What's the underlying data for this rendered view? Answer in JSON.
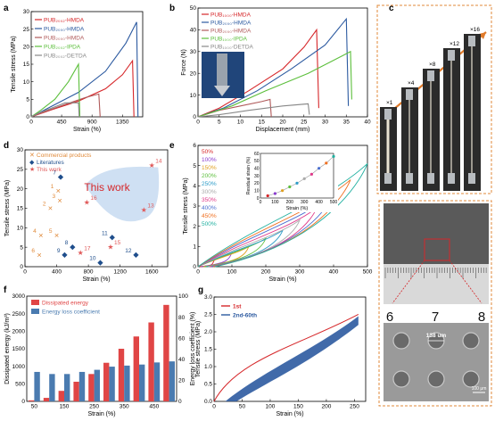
{
  "panels": {
    "a": {
      "label": "a",
      "chart_data": {
        "type": "line",
        "xlabel": "Strain (%)",
        "ylabel": "Tensile stress (MPa)",
        "xlim": [
          0,
          1650
        ],
        "ylim": [
          0,
          30
        ],
        "xticks": [
          "0",
          "450",
          "900",
          "1350"
        ],
        "yticks": [
          "0",
          "5",
          "10",
          "15",
          "20",
          "25",
          "30"
        ],
        "series": [
          {
            "name": "PUB₂₀₀₂-HMDA",
            "color": "#d6272a",
            "points": [
              [
                0,
                0
              ],
              [
                300,
                2
              ],
              [
                700,
                4.5
              ],
              [
                1100,
                8
              ],
              [
                1350,
                12
              ],
              [
                1500,
                16
              ],
              [
                1520,
                0
              ]
            ]
          },
          {
            "name": "PUB₂₀₀₀-HMDA",
            "color": "#2c5aa0",
            "points": [
              [
                0,
                0
              ],
              [
                300,
                3
              ],
              [
                700,
                7
              ],
              [
                1100,
                13
              ],
              [
                1400,
                21
              ],
              [
                1560,
                27
              ],
              [
                1580,
                0
              ]
            ]
          },
          {
            "name": "PUB₂₀₀₀-HMDA",
            "color": "#b05a5a",
            "points": [
              [
                0,
                0
              ],
              [
                200,
                1.5
              ],
              [
                500,
                3.5
              ],
              [
                800,
                5.5
              ],
              [
                1000,
                6.5
              ],
              [
                1020,
                0
              ]
            ]
          },
          {
            "name": "PUB₂₀₀₂-IPDA",
            "color": "#5cbf3c",
            "points": [
              [
                0,
                0
              ],
              [
                150,
                2
              ],
              [
                350,
                5
              ],
              [
                550,
                10
              ],
              [
                700,
                15
              ],
              [
                720,
                0
              ]
            ]
          },
          {
            "name": "PUB₂₀₀₂-DETDA",
            "color": "#888888",
            "points": [
              [
                0,
                0
              ],
              [
                100,
                1
              ],
              [
                300,
                2.5
              ],
              [
                500,
                4
              ],
              [
                700,
                4
              ],
              [
                710,
                0
              ]
            ]
          }
        ]
      }
    },
    "b": {
      "label": "b",
      "chart_data": {
        "type": "line",
        "xlabel": "Displacement (mm)",
        "ylabel": "Force (N)",
        "xlim": [
          0,
          40
        ],
        "ylim": [
          0,
          50
        ],
        "xticks": [
          "0",
          "5",
          "10",
          "15",
          "20",
          "25",
          "30",
          "35",
          "40"
        ],
        "yticks": [
          "0",
          "10",
          "20",
          "30",
          "40",
          "50"
        ],
        "series": [
          {
            "name": "PUB₁₀₀₀-HMDA",
            "color": "#d6272a",
            "points": [
              [
                0,
                0
              ],
              [
                5,
                4
              ],
              [
                12,
                12
              ],
              [
                20,
                22
              ],
              [
                25,
                32
              ],
              [
                28,
                40
              ],
              [
                28.5,
                4
              ]
            ]
          },
          {
            "name": "PUB₂₀₀₀-HMDA",
            "color": "#2c5aa0",
            "points": [
              [
                0,
                0
              ],
              [
                6,
                4
              ],
              [
                14,
                12
              ],
              [
                22,
                22
              ],
              [
                30,
                33
              ],
              [
                35,
                45
              ],
              [
                35.5,
                5
              ]
            ]
          },
          {
            "name": "PUB₂₀₀₀-HMDA",
            "color": "#b05a5a",
            "points": [
              [
                0,
                0
              ],
              [
                5,
                3
              ],
              [
                10,
                5
              ],
              [
                15,
                7
              ],
              [
                17,
                8
              ],
              [
                17.3,
                0
              ]
            ]
          },
          {
            "name": "PUB₁₀₀₀-IPDA",
            "color": "#5cbf3c",
            "points": [
              [
                0,
                0
              ],
              [
                8,
                5
              ],
              [
                16,
                12
              ],
              [
                26,
                20
              ],
              [
                34,
                28
              ],
              [
                36,
                30
              ],
              [
                36.3,
                8
              ]
            ]
          },
          {
            "name": "PUB₁₀₀₀-DETDA",
            "color": "#888888",
            "points": [
              [
                0,
                0
              ],
              [
                5,
                1
              ],
              [
                12,
                3
              ],
              [
                20,
                5
              ],
              [
                26,
                6
              ],
              [
                26.3,
                1
              ]
            ]
          }
        ]
      }
    },
    "c": {
      "label": "c",
      "multipliers": [
        "×1",
        "×4",
        "×8",
        "×12",
        "×16"
      ]
    },
    "d": {
      "label": "d",
      "chart_data": {
        "type": "scatter",
        "xlabel": "Strain (%)",
        "ylabel": "Tensile stress (MPa)",
        "xlim": [
          0,
          1800
        ],
        "ylim": [
          0,
          30
        ],
        "xticks": [
          "0",
          "400",
          "800",
          "1200",
          "1600"
        ],
        "yticks": [
          "0",
          "5",
          "10",
          "15",
          "20",
          "25",
          "30"
        ],
        "legend": [
          "Commercial products",
          "Literatures",
          "This work"
        ],
        "annotation": "This work",
        "points": [
          {
            "label": "1",
            "x": 420,
            "y": 19.5,
            "group": "commercial"
          },
          {
            "label": "2",
            "x": 320,
            "y": 15,
            "group": "commercial"
          },
          {
            "label": "3",
            "x": 440,
            "y": 17,
            "group": "commercial"
          },
          {
            "label": "4",
            "x": 200,
            "y": 8,
            "group": "commercial"
          },
          {
            "label": "5",
            "x": 400,
            "y": 8,
            "group": "commercial"
          },
          {
            "label": "6",
            "x": 180,
            "y": 3,
            "group": "commercial"
          },
          {
            "label": "7",
            "x": 450,
            "y": 23,
            "group": "literature"
          },
          {
            "label": "8",
            "x": 600,
            "y": 5,
            "group": "literature"
          },
          {
            "label": "9",
            "x": 500,
            "y": 3,
            "group": "literature"
          },
          {
            "label": "10",
            "x": 950,
            "y": 1,
            "group": "literature"
          },
          {
            "label": "11",
            "x": 1100,
            "y": 7.5,
            "group": "literature"
          },
          {
            "label": "12",
            "x": 1400,
            "y": 3,
            "group": "literature"
          },
          {
            "label": "13",
            "x": 1500,
            "y": 14.5,
            "group": "this"
          },
          {
            "label": "14",
            "x": 1600,
            "y": 26,
            "group": "this"
          },
          {
            "label": "15",
            "x": 1080,
            "y": 5,
            "group": "this"
          },
          {
            "label": "16",
            "x": 780,
            "y": 16.5,
            "group": "this"
          },
          {
            "label": "17",
            "x": 700,
            "y": 3.5,
            "group": "this"
          }
        ]
      }
    },
    "e": {
      "label": "e",
      "chart_data": {
        "type": "line",
        "xlabel": "Strain (%)",
        "ylabel": "Tensile stress (MPa)",
        "xlim": [
          0,
          500
        ],
        "ylim": [
          0,
          6
        ],
        "xticks": [
          "0",
          "100",
          "200",
          "300",
          "400",
          "500"
        ],
        "yticks": [
          "0",
          "1",
          "2",
          "3",
          "4",
          "5",
          "6"
        ],
        "series": [
          {
            "name": "50%",
            "color": "#d6272a",
            "max_strain": 50,
            "max_stress": 0.4
          },
          {
            "name": "100%",
            "color": "#8a3ccf",
            "max_strain": 100,
            "max_stress": 0.7
          },
          {
            "name": "150%",
            "color": "#e0a020",
            "max_strain": 150,
            "max_stress": 1.0
          },
          {
            "name": "200%",
            "color": "#5cbf3c",
            "max_strain": 200,
            "max_stress": 1.4
          },
          {
            "name": "250%",
            "color": "#2c9cc8",
            "max_strain": 250,
            "max_stress": 1.8
          },
          {
            "name": "300%",
            "color": "#aaaaaa",
            "max_strain": 300,
            "max_stress": 2.3
          },
          {
            "name": "350%",
            "color": "#e03a8a",
            "max_strain": 350,
            "max_stress": 2.9
          },
          {
            "name": "400%",
            "color": "#4b6fd0",
            "max_strain": 400,
            "max_stress": 3.6
          },
          {
            "name": "450%",
            "color": "#f07020",
            "max_strain": 450,
            "max_stress": 4.3
          },
          {
            "name": "500%",
            "color": "#20b0a0",
            "max_strain": 500,
            "max_stress": 5.1
          }
        ],
        "inset": {
          "xlabel": "Strain (%)",
          "ylabel": "Residual strain (%)",
          "xlim": [
            0,
            500
          ],
          "ylim": [
            0,
            60
          ],
          "xticks": [
            "0",
            "100",
            "200",
            "300",
            "400",
            "500"
          ],
          "yticks": [
            "0",
            "10",
            "20",
            "30",
            "40",
            "50",
            "60"
          ],
          "x": [
            50,
            100,
            150,
            200,
            250,
            300,
            350,
            400,
            450,
            500
          ],
          "y": [
            3,
            6,
            10,
            15,
            20,
            26,
            32,
            40,
            47,
            56
          ]
        }
      }
    },
    "f": {
      "label": "f",
      "chart_data": {
        "type": "bar",
        "xlabel": "Strain (%)",
        "ylabel": "Dissipated energy (kJ/m³)",
        "y2label": "Energy loss coefficient (%)",
        "categories": [
          "50",
          "100",
          "150",
          "200",
          "250",
          "300",
          "350",
          "400",
          "450",
          "500"
        ],
        "xticks": [
          "50",
          "150",
          "250",
          "350",
          "450"
        ],
        "ylim": [
          0,
          3000
        ],
        "y2lim": [
          0,
          100
        ],
        "yticks": [
          "0",
          "500",
          "1000",
          "1500",
          "2000",
          "2500",
          "3000"
        ],
        "y2ticks": [
          "0",
          "20",
          "40",
          "60",
          "80",
          "100"
        ],
        "series": [
          {
            "name": "Dissipated energy",
            "color": "#e04545",
            "values": [
              30,
              100,
              300,
              560,
              780,
              1100,
              1500,
              1850,
              2250,
              2750
            ]
          },
          {
            "name": "Energy loss coefficient",
            "color": "#4a7bb0",
            "values": [
              28,
              26,
              26,
              28,
              30,
              33,
              34,
              35,
              37,
              38
            ]
          }
        ]
      }
    },
    "g": {
      "label": "g",
      "chart_data": {
        "type": "line",
        "xlabel": "Strain (%)",
        "ylabel": "Tensile stress (MPa)",
        "xlim": [
          0,
          270
        ],
        "ylim": [
          0,
          3.0
        ],
        "xticks": [
          "0",
          "50",
          "100",
          "150",
          "200",
          "250"
        ],
        "yticks": [
          "0.0",
          "0.5",
          "1.0",
          "1.5",
          "2.0",
          "2.5",
          "3.0"
        ],
        "series": [
          {
            "name": "1st",
            "color": "#d6272a"
          },
          {
            "name": "2nd-60th",
            "color": "#2c5aa0"
          }
        ]
      }
    },
    "h": {
      "label": "h",
      "ruler": [
        "6",
        "7",
        "8"
      ],
      "scale_text": "138 um",
      "scalebar": "100 μm"
    }
  }
}
